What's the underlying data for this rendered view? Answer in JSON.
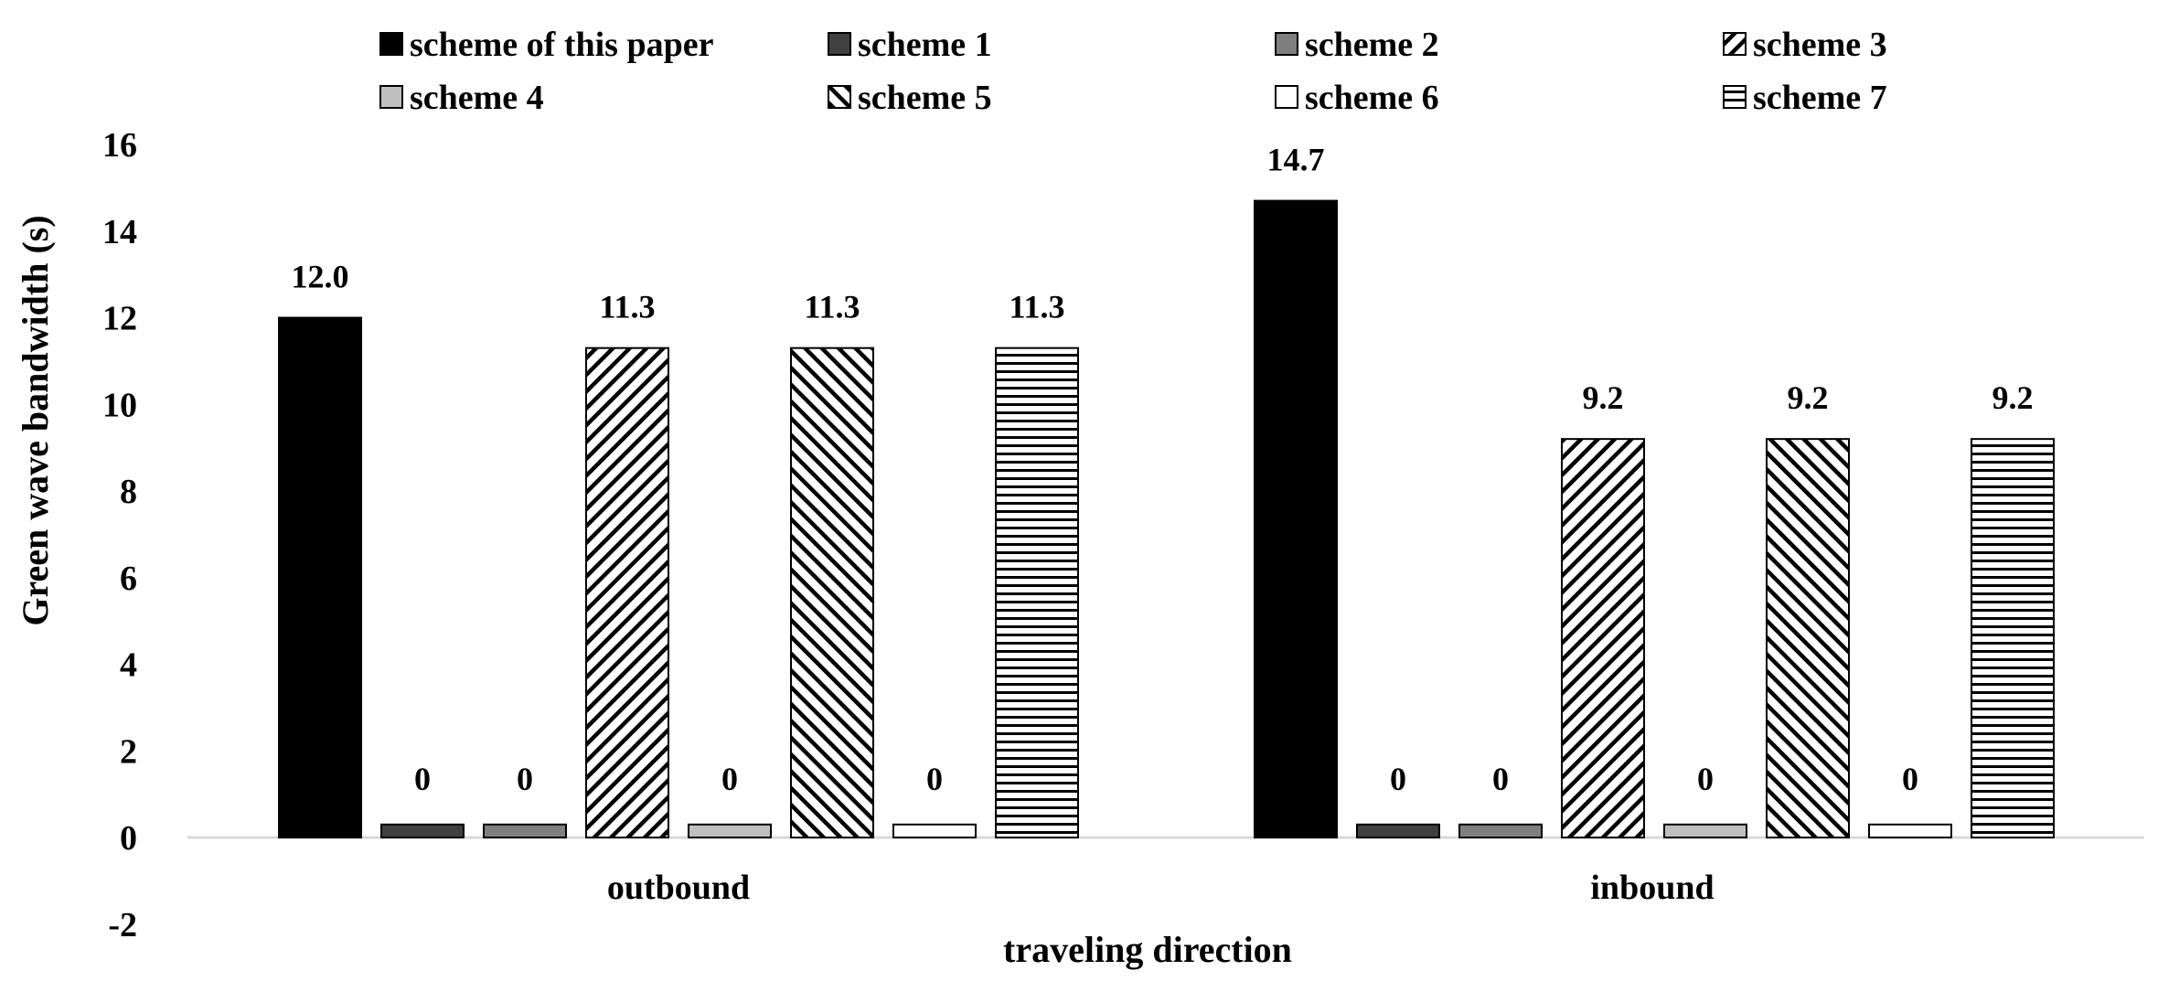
{
  "chart_data": {
    "type": "bar",
    "title": "",
    "xlabel": "traveling direction",
    "ylabel": "Green wave bandwidth (s)",
    "categories": [
      "outbound",
      "inbound"
    ],
    "ylim": [
      -2,
      16
    ],
    "yticks": [
      -2,
      0,
      2,
      4,
      6,
      8,
      10,
      12,
      14,
      16
    ],
    "grid": false,
    "legend_position": "top",
    "series": [
      {
        "name": "scheme of this paper",
        "values": [
          12.0,
          14.7
        ],
        "labels": [
          "12.0",
          "14.7"
        ],
        "fill": "solid-black",
        "color": "#000000"
      },
      {
        "name": "scheme 1",
        "values": [
          0,
          0
        ],
        "labels": [
          "0",
          "0"
        ],
        "fill": "solid-dark-gray",
        "color": "#404040"
      },
      {
        "name": "scheme 2",
        "values": [
          0,
          0
        ],
        "labels": [
          "0",
          "0"
        ],
        "fill": "solid-medium-gray",
        "color": "#7f7f7f"
      },
      {
        "name": "scheme 3",
        "values": [
          11.3,
          9.2
        ],
        "labels": [
          "11.3",
          "9.2"
        ],
        "fill": "diagonal-stripes-up",
        "color": "#000000"
      },
      {
        "name": "scheme 4",
        "values": [
          0,
          0
        ],
        "labels": [
          "0",
          "0"
        ],
        "fill": "solid-light-gray",
        "color": "#bfbfbf"
      },
      {
        "name": "scheme 5",
        "values": [
          11.3,
          9.2
        ],
        "labels": [
          "11.3",
          "9.2"
        ],
        "fill": "diagonal-stripes-down",
        "color": "#000000"
      },
      {
        "name": "scheme 6",
        "values": [
          0,
          0
        ],
        "labels": [
          "0",
          "0"
        ],
        "fill": "white",
        "color": "#ffffff"
      },
      {
        "name": "scheme 7",
        "values": [
          11.3,
          9.2
        ],
        "labels": [
          "11.3",
          "9.2"
        ],
        "fill": "horizontal-stripes",
        "color": "#000000"
      }
    ]
  }
}
